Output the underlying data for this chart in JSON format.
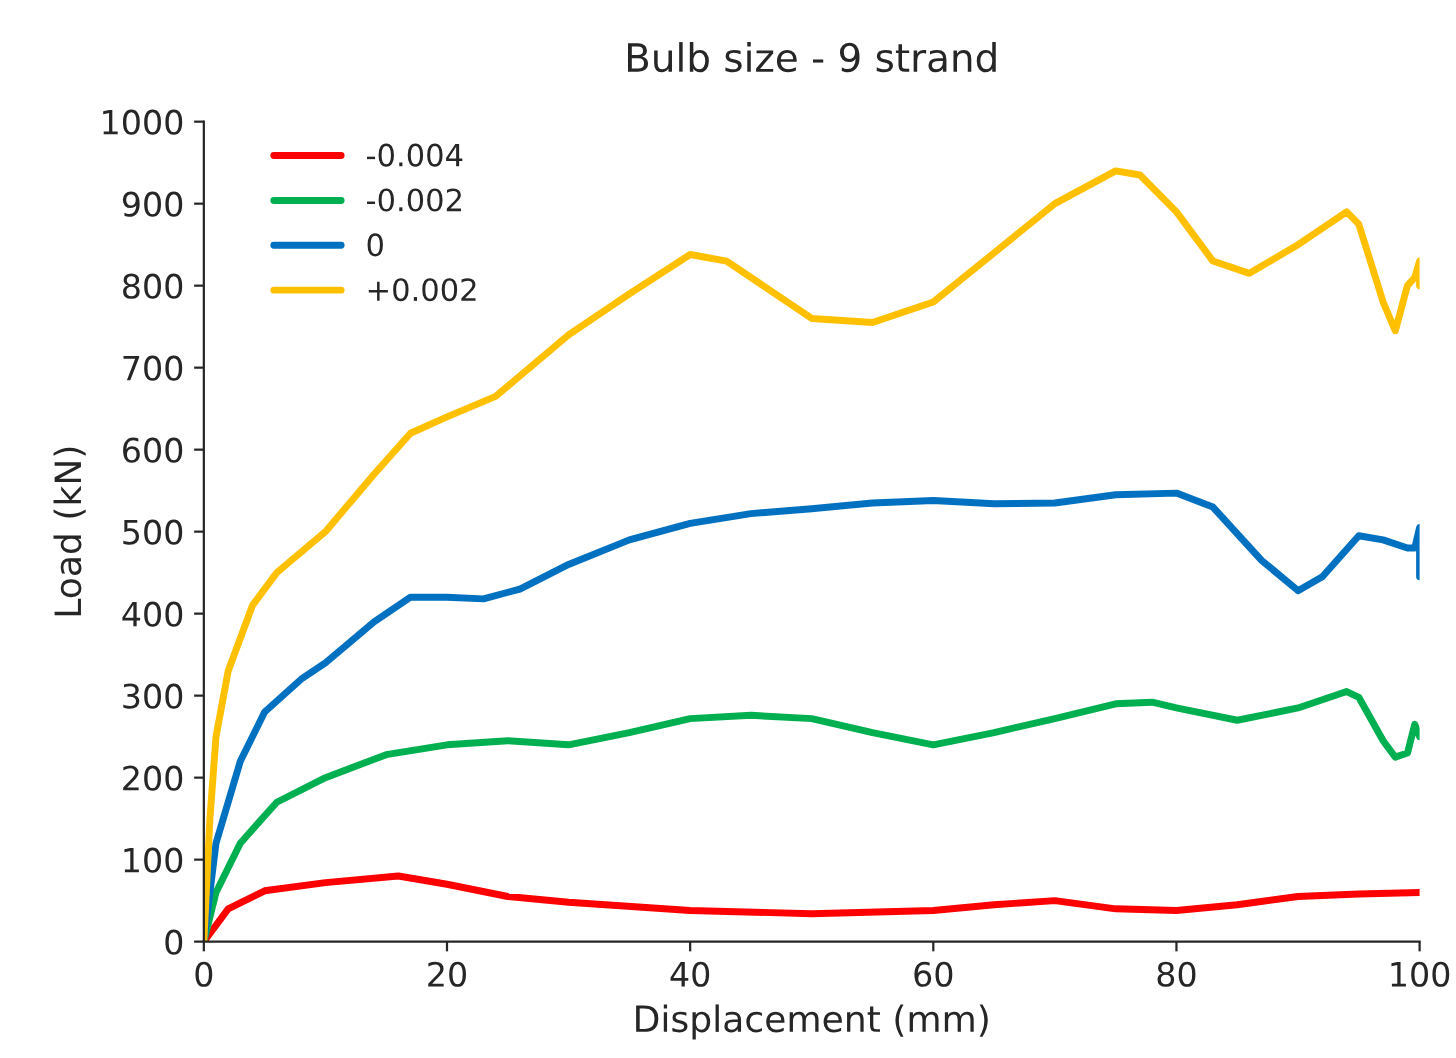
{
  "chart_data": {
    "type": "line",
    "title": "Bulb size - 9 strand",
    "xlabel": "Displacement (mm)",
    "ylabel": "Load (kN)",
    "xlim": [
      0,
      100
    ],
    "xticks": [
      0,
      20,
      40,
      60,
      80,
      100
    ],
    "ylim": [
      0,
      1000
    ],
    "yticks": [
      0,
      100,
      200,
      300,
      400,
      500,
      600,
      700,
      800,
      900,
      1000
    ],
    "grid": false,
    "legend": "top left",
    "marker": "none",
    "line_style": "solid",
    "series": [
      {
        "name": "-0.004",
        "color": "#ff0000",
        "x": [
          0,
          2,
          5,
          10,
          16,
          20,
          25,
          30,
          40,
          50,
          60,
          65,
          70,
          75,
          80,
          85,
          90,
          95,
          100
        ],
        "values": [
          0,
          40,
          62,
          72,
          80,
          70,
          55,
          48,
          38,
          34,
          38,
          45,
          50,
          40,
          38,
          45,
          55,
          58,
          60
        ]
      },
      {
        "name": "-0.002",
        "color": "#00b050",
        "x": [
          0,
          1,
          3,
          6,
          10,
          15,
          20,
          25,
          30,
          35,
          40,
          45,
          50,
          55,
          60,
          65,
          70,
          75,
          78,
          80,
          85,
          90,
          94,
          95,
          97,
          98,
          99,
          99.6,
          100
        ],
        "values": [
          0,
          60,
          120,
          170,
          200,
          228,
          240,
          245,
          240,
          255,
          272,
          276,
          272,
          255,
          240,
          255,
          272,
          290,
          292,
          285,
          270,
          285,
          305,
          298,
          245,
          225,
          230,
          265,
          250
        ]
      },
      {
        "name": "0",
        "color": "#0070c0",
        "x": [
          0,
          1,
          3,
          5,
          8,
          10,
          14,
          17,
          20,
          23,
          26,
          30,
          35,
          40,
          45,
          50,
          55,
          60,
          65,
          70,
          75,
          80,
          83,
          87,
          90,
          92,
          95,
          97,
          99,
          99.6,
          100,
          100
        ],
        "values": [
          0,
          120,
          220,
          280,
          320,
          340,
          390,
          420,
          420,
          418,
          430,
          460,
          490,
          510,
          522,
          528,
          535,
          538,
          534,
          535,
          545,
          547,
          530,
          465,
          428,
          445,
          495,
          490,
          480,
          480,
          505,
          445
        ]
      },
      {
        "name": "+0.002",
        "color": "#ffc000",
        "x": [
          0,
          0.5,
          1,
          2,
          4,
          6,
          10,
          14,
          17,
          20,
          24,
          30,
          35,
          40,
          43,
          47,
          50,
          55,
          60,
          65,
          70,
          75,
          77,
          80,
          83,
          86,
          90,
          94,
          95,
          97,
          98,
          99,
          99.6,
          100,
          100
        ],
        "values": [
          0,
          150,
          250,
          330,
          410,
          450,
          500,
          570,
          620,
          640,
          665,
          740,
          790,
          838,
          830,
          790,
          760,
          755,
          780,
          840,
          900,
          940,
          935,
          890,
          830,
          815,
          850,
          890,
          875,
          780,
          745,
          800,
          810,
          830,
          800
        ]
      }
    ]
  }
}
